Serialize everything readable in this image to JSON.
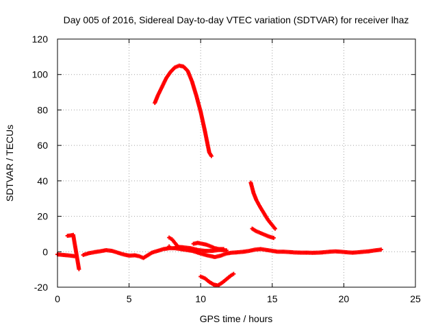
{
  "chart_data": {
    "type": "scatter",
    "title": "Day 005 of 2016, Sidereal Day-to-day VTEC variation (SDTVAR) for receiver lhaz",
    "xlabel": "GPS time / hours",
    "ylabel": "SDTVAR / TECUs",
    "xlim": [
      0,
      25
    ],
    "ylim": [
      -20,
      120
    ],
    "xticks": [
      0,
      5,
      10,
      15,
      20,
      25
    ],
    "yticks": [
      -20,
      0,
      20,
      40,
      60,
      80,
      100,
      120
    ],
    "xtick_labels": [
      "0",
      "5",
      "10",
      "15",
      "20",
      "25"
    ],
    "ytick_labels": [
      "-20",
      "0",
      "20",
      "40",
      "60",
      "80",
      "100",
      "120"
    ],
    "grid": true,
    "marker": "plus",
    "color": "#ff0000",
    "series": [
      {
        "name": "big-arc",
        "points": [
          [
            6.8,
            84
          ],
          [
            7.0,
            88
          ],
          [
            7.3,
            93
          ],
          [
            7.6,
            98
          ],
          [
            7.9,
            101.5
          ],
          [
            8.2,
            104
          ],
          [
            8.5,
            105
          ],
          [
            8.8,
            104.5
          ],
          [
            9.1,
            102
          ],
          [
            9.4,
            96
          ],
          [
            9.7,
            88
          ],
          [
            10.0,
            79
          ],
          [
            10.3,
            68
          ],
          [
            10.6,
            56
          ],
          [
            10.75,
            54
          ]
        ]
      },
      {
        "name": "arc-14h",
        "points": [
          [
            13.5,
            39
          ],
          [
            13.7,
            33
          ],
          [
            13.9,
            29
          ],
          [
            14.1,
            26
          ],
          [
            14.4,
            22
          ],
          [
            14.7,
            18
          ],
          [
            15.0,
            15
          ],
          [
            15.2,
            13
          ]
        ]
      },
      {
        "name": "arc-14h-lower",
        "points": [
          [
            13.6,
            13
          ],
          [
            13.9,
            11.5
          ],
          [
            14.2,
            10.5
          ],
          [
            14.5,
            9.5
          ],
          [
            14.8,
            8.5
          ],
          [
            15.1,
            7.8
          ]
        ]
      },
      {
        "name": "small-rise",
        "points": [
          [
            7.8,
            8
          ],
          [
            8.0,
            7
          ],
          [
            8.2,
            5
          ],
          [
            8.4,
            3
          ],
          [
            8.6,
            2
          ]
        ]
      },
      {
        "name": "hump-10h",
        "points": [
          [
            9.5,
            4.5
          ],
          [
            9.8,
            5
          ],
          [
            10.1,
            4.5
          ],
          [
            10.4,
            4
          ],
          [
            10.7,
            3
          ],
          [
            11.0,
            2
          ],
          [
            11.3,
            1.5
          ],
          [
            11.6,
            1.5
          ]
        ]
      },
      {
        "name": "dip-11h",
        "points": [
          [
            10.0,
            -14
          ],
          [
            10.3,
            -15
          ],
          [
            10.6,
            -17
          ],
          [
            10.9,
            -18.5
          ],
          [
            11.2,
            -19
          ],
          [
            11.5,
            -17.5
          ],
          [
            11.8,
            -15.5
          ],
          [
            12.1,
            -13.5
          ],
          [
            12.3,
            -12.5
          ]
        ]
      },
      {
        "name": "early-dashes",
        "points": [
          [
            0.7,
            9
          ],
          [
            0.9,
            9.2
          ],
          [
            1.1,
            9.5
          ],
          [
            1.5,
            -9.8
          ]
        ]
      },
      {
        "name": "baseline",
        "points": [
          [
            0,
            -1.5
          ],
          [
            0.4,
            -1.8
          ],
          [
            0.8,
            -2.1
          ],
          [
            1.2,
            -2.5
          ],
          [
            1.8,
            -1.8
          ],
          [
            2.2,
            -0.8
          ],
          [
            2.6,
            -0.2
          ],
          [
            3.0,
            0.3
          ],
          [
            3.4,
            0.9
          ],
          [
            3.8,
            0.5
          ],
          [
            4.2,
            -0.5
          ],
          [
            4.6,
            -1.5
          ],
          [
            5.0,
            -2.2
          ],
          [
            5.4,
            -2.0
          ],
          [
            5.7,
            -2.5
          ],
          [
            6.0,
            -3.5
          ],
          [
            6.3,
            -2.0
          ],
          [
            6.6,
            -0.5
          ],
          [
            7.0,
            0.5
          ],
          [
            7.4,
            1.5
          ],
          [
            7.8,
            2.0
          ],
          [
            8.2,
            2.0
          ],
          [
            8.6,
            1.5
          ],
          [
            9.0,
            1.0
          ],
          [
            9.4,
            0.5
          ],
          [
            9.8,
            -0.5
          ],
          [
            10.2,
            -1.5
          ],
          [
            10.6,
            -2.3
          ],
          [
            11.0,
            -3.0
          ],
          [
            11.4,
            -2.2
          ],
          [
            11.8,
            -1.0
          ],
          [
            12.2,
            -0.5
          ],
          [
            12.6,
            -0.3
          ],
          [
            13.0,
            0
          ],
          [
            13.4,
            0.5
          ],
          [
            13.8,
            1.2
          ],
          [
            14.2,
            1.5
          ],
          [
            14.6,
            1.0
          ],
          [
            15.0,
            0.5
          ],
          [
            15.4,
            0
          ],
          [
            15.8,
            0
          ],
          [
            16.2,
            -0.2
          ],
          [
            16.6,
            -0.4
          ],
          [
            17.0,
            -0.5
          ],
          [
            17.4,
            -0.5
          ],
          [
            17.8,
            -0.6
          ],
          [
            18.2,
            -0.5
          ],
          [
            18.6,
            -0.3
          ],
          [
            19.0,
            0
          ],
          [
            19.4,
            0.2
          ],
          [
            19.8,
            0
          ],
          [
            20.2,
            -0.3
          ],
          [
            20.6,
            -0.5
          ],
          [
            21.0,
            -0.3
          ],
          [
            21.4,
            0
          ],
          [
            21.8,
            0.3
          ],
          [
            22.2,
            0.8
          ],
          [
            22.6,
            1.2
          ]
        ]
      },
      {
        "name": "baseline-upper",
        "points": [
          [
            7.8,
            3
          ],
          [
            8.3,
            2.8
          ],
          [
            8.8,
            2.5
          ],
          [
            9.3,
            2.0
          ],
          [
            9.8,
            1.0
          ],
          [
            10.3,
            0.5
          ],
          [
            10.8,
            0.5
          ],
          [
            11.3,
            1.0
          ],
          [
            11.8,
            0.8
          ]
        ]
      }
    ]
  }
}
